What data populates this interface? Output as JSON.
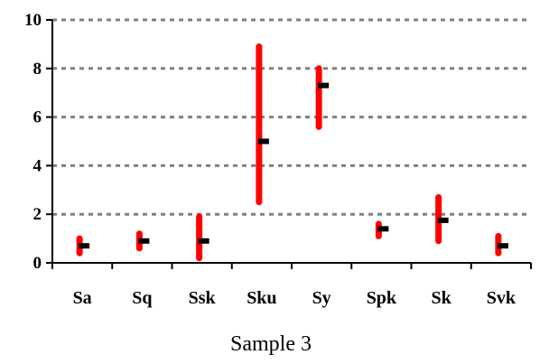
{
  "chart_data": {
    "type": "range",
    "title": "Sample 3",
    "categories": [
      "Sa",
      "Sq",
      "Ssk",
      "Sku",
      "Sy",
      "Spk",
      "Sk",
      "Svk"
    ],
    "series": [
      {
        "name": "",
        "kind": "range",
        "values": [
          [
            0.4,
            1.0
          ],
          [
            0.6,
            1.2
          ],
          [
            0.2,
            1.9
          ],
          [
            2.5,
            8.9
          ],
          [
            5.6,
            8.0
          ],
          [
            1.1,
            1.6
          ],
          [
            0.9,
            2.7
          ],
          [
            0.4,
            1.1
          ]
        ]
      },
      {
        "name": "",
        "kind": "marker",
        "values": [
          0.7,
          0.9,
          0.9,
          5.0,
          7.3,
          1.4,
          1.75,
          0.7
        ]
      }
    ],
    "y_ticks": [
      "0",
      "2",
      "4",
      "6",
      "8",
      "10"
    ],
    "ylim": [
      0,
      10
    ],
    "xlabel": "",
    "ylabel": "",
    "grid": "horizontal-dashed",
    "colors": {
      "range": "#ff0000",
      "marker": "#000000",
      "grid": "#808080",
      "axis": "#000000"
    }
  }
}
